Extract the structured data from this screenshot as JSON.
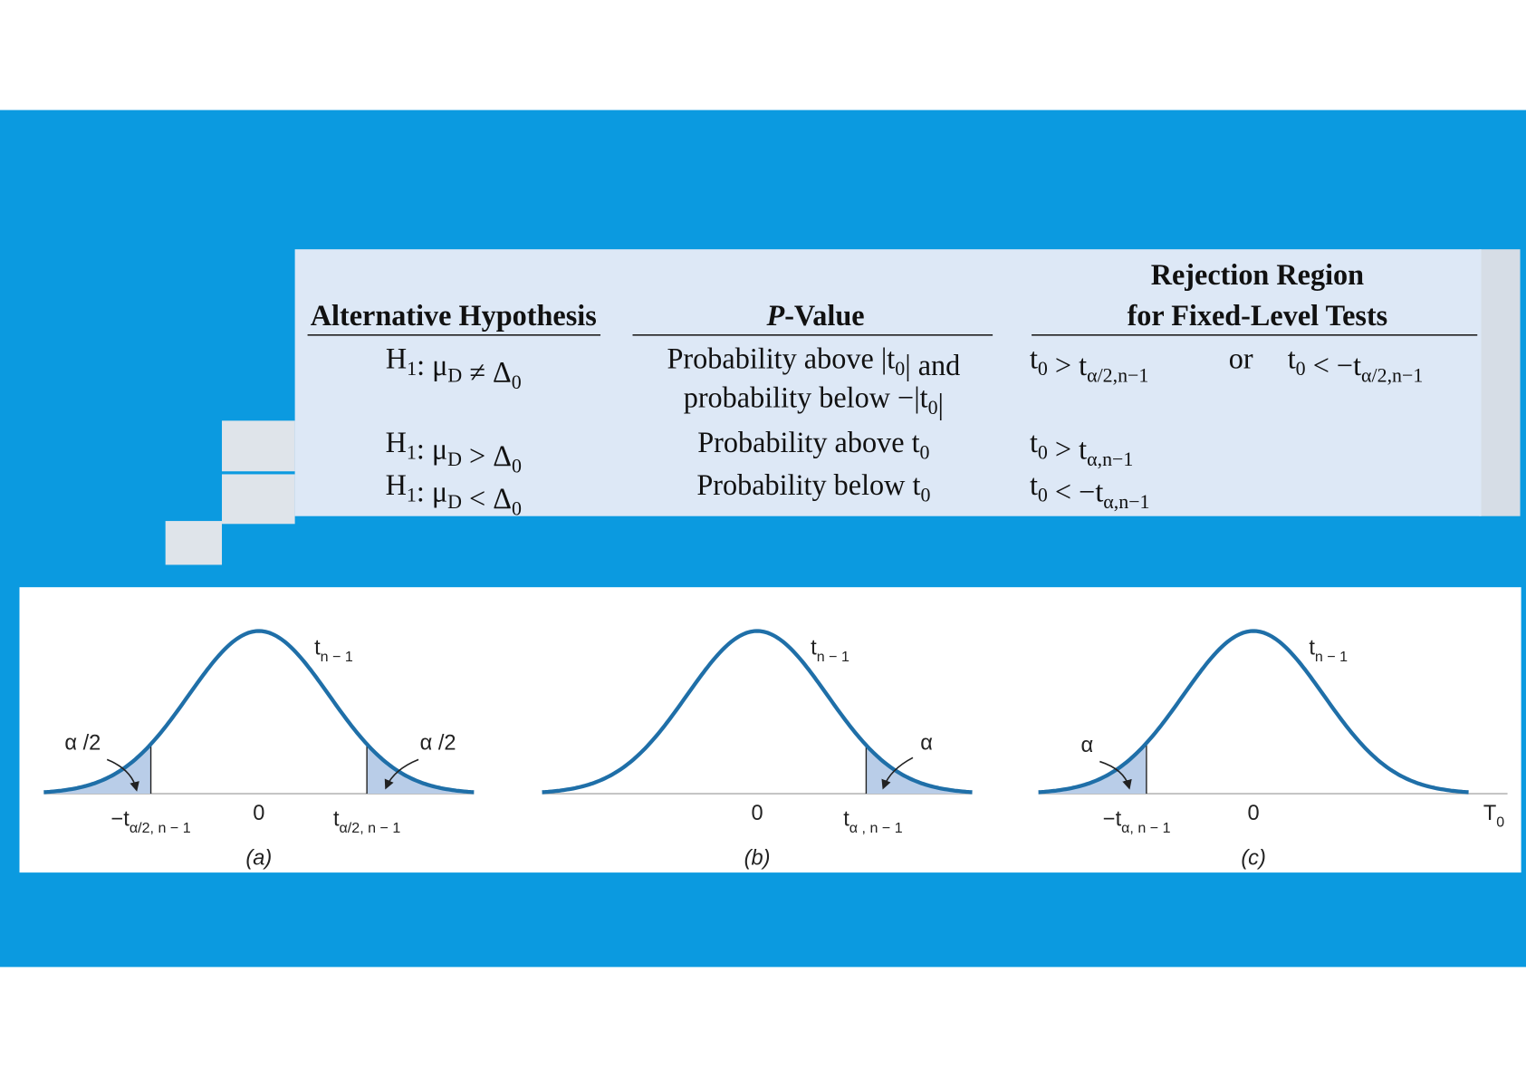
{
  "table": {
    "headers": {
      "hypothesis": "Alternative Hypothesis",
      "p_value": [
        {
          "sub_bold": "P"
        },
        "-Value"
      ],
      "rejection": [
        "Rejection Region",
        "for Fixed-Level Tests"
      ]
    },
    "rows": [
      {
        "hypothesis": [
          "H",
          {
            "sub": "1"
          },
          ": μ",
          {
            "sub": "D"
          },
          " ≠ Δ",
          {
            "sub": "0"
          }
        ],
        "p_value": [
          [
            "Probability above |t",
            {
              "sub": "0"
            },
            "| and"
          ],
          [
            "probability below −|t",
            {
              "sub": "0"
            },
            "|"
          ]
        ],
        "rejection": [
          [
            "t",
            {
              "sub": "0"
            },
            " > t",
            {
              "sub": "α/2,n−1"
            }
          ],
          [
            "or"
          ],
          [
            "t",
            {
              "sub": "0"
            },
            " < −t",
            {
              "sub": "α/2,n−1"
            }
          ]
        ]
      },
      {
        "hypothesis": [
          "H",
          {
            "sub": "1"
          },
          ": μ",
          {
            "sub": "D"
          },
          " > Δ",
          {
            "sub": "0"
          }
        ],
        "p_value": [
          [
            "Probability above t",
            {
              "sub": "0"
            }
          ]
        ],
        "rejection": [
          [
            "t",
            {
              "sub": "0"
            },
            " > t",
            {
              "sub": "α,n−1"
            }
          ]
        ]
      },
      {
        "hypothesis": [
          "H",
          {
            "sub": "1"
          },
          ": μ",
          {
            "sub": "D"
          },
          " < Δ",
          {
            "sub": "0"
          }
        ],
        "p_value": [
          [
            "Probability below t",
            {
              "sub": "0"
            }
          ]
        ],
        "rejection": [
          [
            "t",
            {
              "sub": "0"
            },
            " < −t",
            {
              "sub": "α,n−1"
            }
          ]
        ]
      }
    ]
  },
  "figures": {
    "panels": [
      {
        "curve_label": [
          "t",
          {
            "sub": "n − 1"
          }
        ],
        "tail_labels": [
          [
            "α /2"
          ],
          [
            "α /2"
          ]
        ],
        "axis_labels": [
          [
            "−t",
            {
              "sub": "α/2, n − 1"
            }
          ],
          [
            "0"
          ],
          [
            "t",
            {
              "sub": "α/2, n − 1"
            }
          ]
        ],
        "caption": "(a)"
      },
      {
        "curve_label": [
          "t",
          {
            "sub": "n − 1"
          }
        ],
        "tail_labels": [
          [
            "α"
          ]
        ],
        "axis_labels": [
          [
            "0"
          ],
          [
            "t",
            {
              "sub": "α , n − 1"
            }
          ]
        ],
        "caption": "(b)"
      },
      {
        "curve_label": [
          "t",
          {
            "sub": "n − 1"
          }
        ],
        "tail_labels": [
          [
            "α"
          ]
        ],
        "axis_labels": [
          [
            "−t",
            {
              "sub": "α, n − 1"
            }
          ],
          [
            "0"
          ],
          [
            "T",
            {
              "sub": "0"
            }
          ]
        ],
        "caption": "(c)"
      }
    ]
  }
}
